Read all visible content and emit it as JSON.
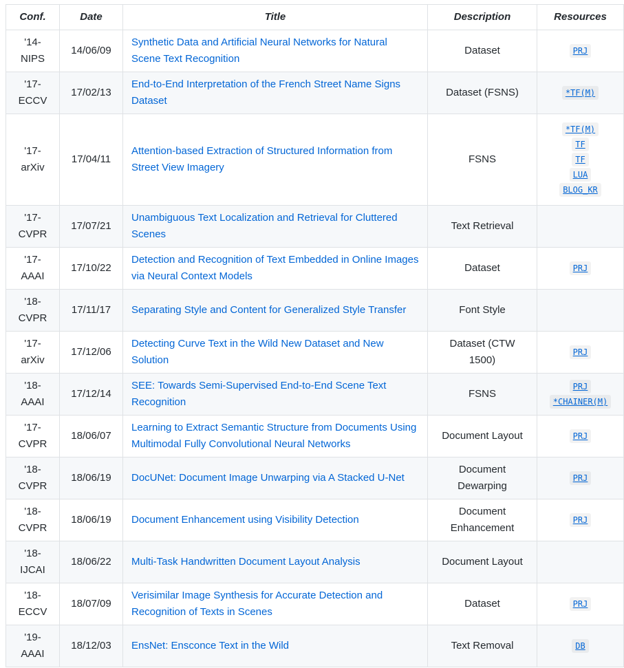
{
  "headers": [
    "Conf.",
    "Date",
    "Title",
    "Description",
    "Resources"
  ],
  "rows": [
    {
      "conf": "'14-NIPS",
      "date": "14/06/09",
      "title": "Synthetic Data and Artificial Neural Networks for Natural Scene Text Recognition",
      "desc": "Dataset",
      "res": [
        "PRJ"
      ]
    },
    {
      "conf": "'17-ECCV",
      "date": "17/02/13",
      "title": "End-to-End Interpretation of the French Street Name Signs Dataset",
      "desc": "Dataset (FSNS)",
      "res": [
        "*TF(M)"
      ]
    },
    {
      "conf": "'17-arXiv",
      "date": "17/04/11",
      "title": "Attention-based Extraction of Structured Information from Street View Imagery",
      "desc": "FSNS",
      "res": [
        "*TF(M)",
        "TF",
        "TF",
        "LUA",
        "BLOG_KR"
      ]
    },
    {
      "conf": "'17-CVPR",
      "date": "17/07/21",
      "title": "Unambiguous Text Localization and Retrieval for Cluttered Scenes",
      "desc": "Text Retrieval",
      "res": []
    },
    {
      "conf": "'17-AAAI",
      "date": "17/10/22",
      "title": "Detection and Recognition of Text Embedded in Online Images via Neural Context Models",
      "desc": "Dataset",
      "res": [
        "PRJ"
      ]
    },
    {
      "conf": "'18-CVPR",
      "date": "17/11/17",
      "title": "Separating Style and Content for Generalized Style Transfer",
      "desc": "Font Style",
      "res": []
    },
    {
      "conf": "'17-arXiv",
      "date": "17/12/06",
      "title": "Detecting Curve Text in the Wild New Dataset and New Solution",
      "desc": "Dataset (CTW 1500)",
      "res": [
        "PRJ"
      ]
    },
    {
      "conf": "'18-AAAI",
      "date": "17/12/14",
      "title": "SEE: Towards Semi-Supervised End-to-End Scene Text Recognition",
      "desc": "FSNS",
      "res": [
        "PRJ",
        "*CHAINER(M)"
      ]
    },
    {
      "conf": "'17-CVPR",
      "date": "18/06/07",
      "title": "Learning to Extract Semantic Structure from Documents Using Multimodal Fully Convolutional Neural Networks",
      "desc": "Document Layout",
      "res": [
        "PRJ"
      ]
    },
    {
      "conf": "'18-CVPR",
      "date": "18/06/19",
      "title": "DocUNet: Document Image Unwarping via A Stacked U-Net",
      "desc": "Document Dewarping",
      "res": [
        "PRJ"
      ]
    },
    {
      "conf": "'18-CVPR",
      "date": "18/06/19",
      "title": "Document Enhancement using Visibility Detection",
      "desc": "Document Enhancement",
      "res": [
        "PRJ"
      ]
    },
    {
      "conf": "'18-IJCAI",
      "date": "18/06/22",
      "title": "Multi-Task Handwritten Document Layout Analysis",
      "desc": "Document Layout",
      "res": []
    },
    {
      "conf": "'18-ECCV",
      "date": "18/07/09",
      "title": "Verisimilar Image Synthesis for Accurate Detection and Recognition of Texts in Scenes",
      "desc": "Dataset",
      "res": [
        "PRJ"
      ]
    },
    {
      "conf": "'19-AAAI",
      "date": "18/12/03",
      "title": "EnsNet: Ensconce Text in the Wild",
      "desc": "Text Removal",
      "res": [
        "DB"
      ]
    }
  ]
}
